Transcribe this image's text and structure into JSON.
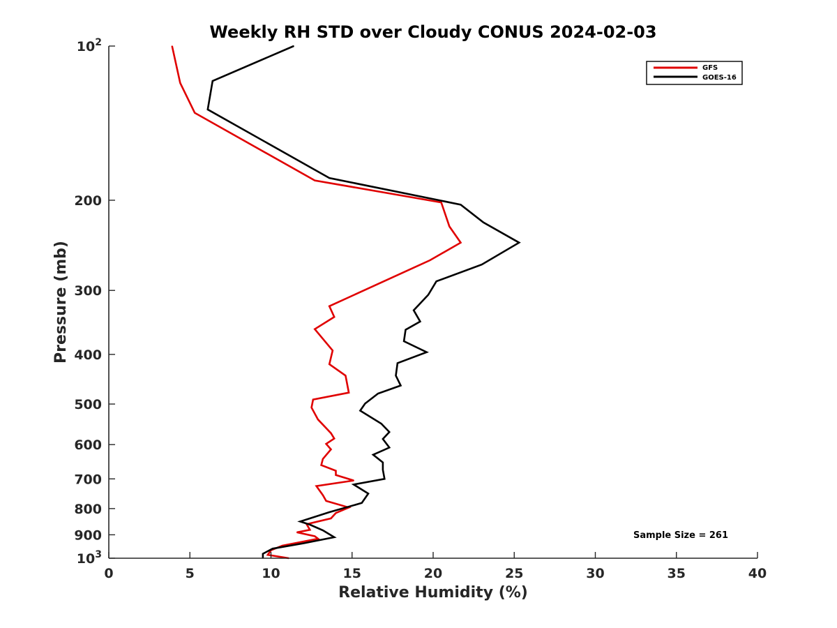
{
  "chart_data": {
    "type": "line",
    "title": "Weekly RH STD over Cloudy CONUS 2024-02-03",
    "xlabel": "Relative Humidity (%)",
    "ylabel": "Pressure (mb)",
    "xlim": [
      0,
      40
    ],
    "ylim": [
      100,
      1000
    ],
    "yscale": "log",
    "y_reversed": true,
    "grid": false,
    "legend_position": "top-right",
    "x_ticks": [
      "0",
      "5",
      "10",
      "15",
      "20",
      "25",
      "30",
      "35",
      "40"
    ],
    "y_ticks": [
      {
        "value": 100,
        "base": "10",
        "exp": "2"
      },
      {
        "value": 200,
        "base": "200",
        "exp": ""
      },
      {
        "value": 300,
        "base": "300",
        "exp": ""
      },
      {
        "value": 400,
        "base": "400",
        "exp": ""
      },
      {
        "value": 500,
        "base": "500",
        "exp": ""
      },
      {
        "value": 600,
        "base": "600",
        "exp": ""
      },
      {
        "value": 700,
        "base": "700",
        "exp": ""
      },
      {
        "value": 800,
        "base": "800",
        "exp": ""
      },
      {
        "value": 900,
        "base": "900",
        "exp": ""
      },
      {
        "value": 1000,
        "base": "10",
        "exp": "3"
      }
    ],
    "annotation": "Sample Size = 261",
    "series": [
      {
        "name": "GFS",
        "color": "#e00000",
        "x": [
          3.9,
          4.4,
          5.3,
          12.7,
          20.5,
          21.0,
          21.7,
          19.8,
          13.6,
          13.9,
          12.7,
          13.8,
          13.6,
          14.6,
          14.8,
          12.6,
          12.5,
          12.9,
          13.7,
          13.9,
          13.4,
          13.7,
          13.2,
          13.1,
          14.0,
          14.0,
          15.1,
          12.8,
          13.2,
          13.4,
          14.8,
          14.0,
          13.7,
          12.2,
          12.4,
          11.6,
          12.7,
          12.9,
          10.7,
          10.0,
          9.8,
          11.1
        ],
        "y": [
          100,
          118,
          135,
          183,
          202,
          225,
          242,
          262,
          322,
          338,
          357,
          393,
          418,
          440,
          475,
          490,
          508,
          536,
          570,
          584,
          598,
          613,
          640,
          658,
          675,
          688,
          705,
          723,
          753,
          773,
          796,
          816,
          836,
          858,
          880,
          890,
          906,
          916,
          945,
          965,
          985,
          1000
        ]
      },
      {
        "name": "GOES-16",
        "color": "#000000",
        "x": [
          11.4,
          6.4,
          6.1,
          13.6,
          21.7,
          23.1,
          25.3,
          23.0,
          20.2,
          19.7,
          18.8,
          19.2,
          18.3,
          18.2,
          19.6,
          17.8,
          17.7,
          18.0,
          16.6,
          15.8,
          15.5,
          16.8,
          17.3,
          16.9,
          17.3,
          16.3,
          16.9,
          16.9,
          17.0,
          15.1,
          16.0,
          15.6,
          13.6,
          11.8,
          12.4,
          13.2,
          13.9,
          12.0,
          10.1,
          9.5,
          9.5
        ],
        "y": [
          100,
          117,
          133,
          181,
          204,
          221,
          242,
          267,
          288,
          306,
          328,
          345,
          358,
          377,
          396,
          416,
          440,
          460,
          477,
          499,
          515,
          546,
          567,
          585,
          608,
          628,
          650,
          672,
          700,
          718,
          748,
          780,
          813,
          848,
          860,
          882,
          910,
          935,
          958,
          980,
          1000
        ]
      }
    ]
  }
}
